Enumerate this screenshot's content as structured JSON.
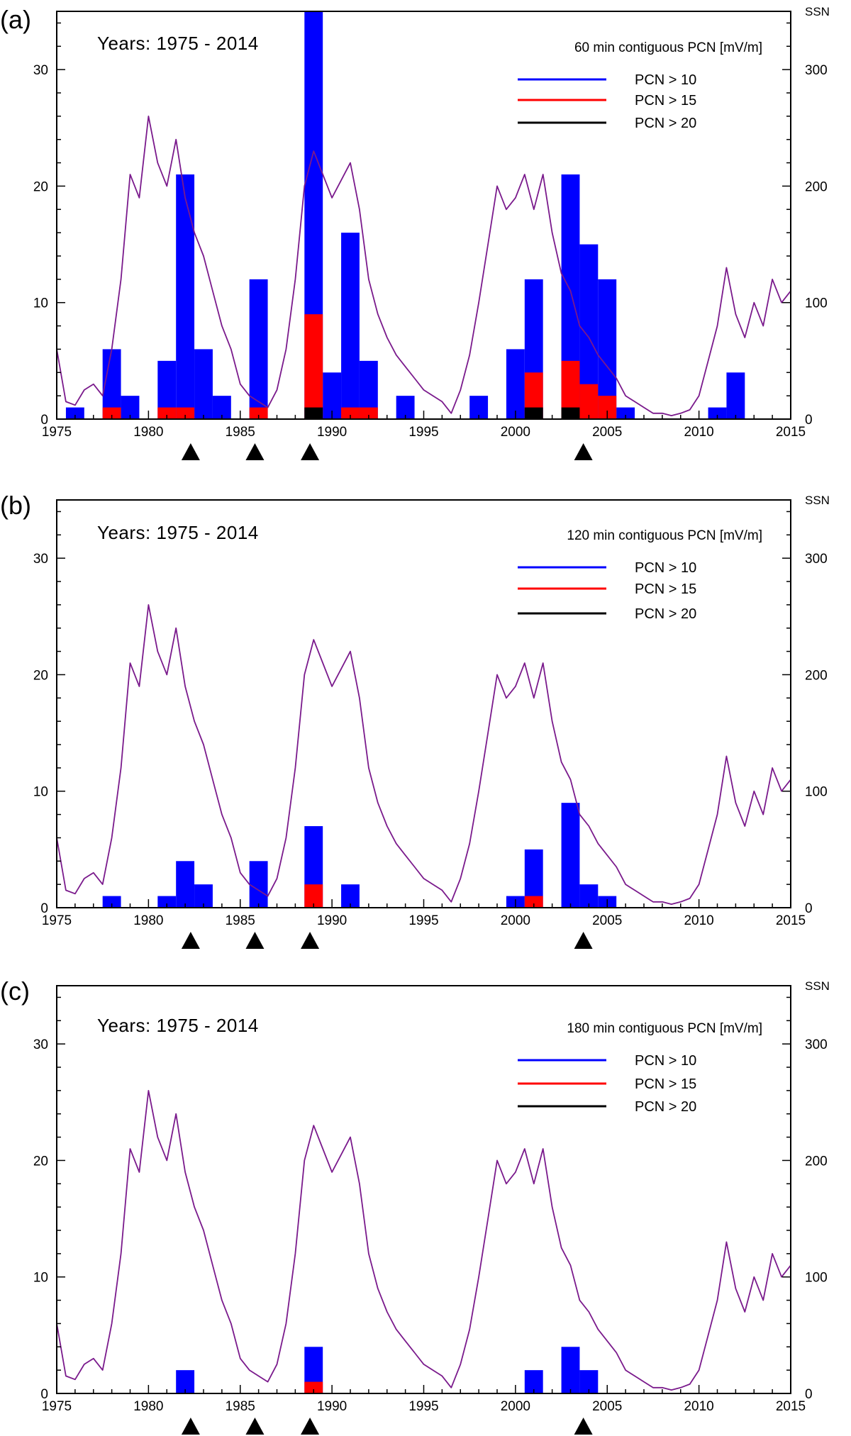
{
  "figure": {
    "ssn_label": "SSN",
    "x_ticks": [
      "1975",
      "1980",
      "1985",
      "1990",
      "1995",
      "2000",
      "2005",
      "2010",
      "2015"
    ],
    "left_ticks": [
      "0",
      "10",
      "20",
      "30"
    ],
    "right_ticks": [
      "0",
      "100",
      "200",
      "300"
    ],
    "colors": {
      "pcn10": "#0000ff",
      "pcn15": "#ff0000",
      "pcn20": "#000000",
      "ssn": "#7a1a8c"
    }
  },
  "chart_data": [
    {
      "type": "bar",
      "panel": "(a)",
      "title": "Years: 1975 - 2014",
      "subtitle": "60 min contiguous PCN [mV/m]",
      "legend": [
        "PCN > 10",
        "PCN > 15",
        "PCN > 20"
      ],
      "legend_placement": "top-right",
      "xlim": [
        1975,
        2015
      ],
      "ylim": [
        0,
        35
      ],
      "y2lim": [
        0,
        350
      ],
      "events": [
        1982.3,
        1985.8,
        1988.8,
        2003.7
      ],
      "series": [
        {
          "name": "PCN > 10",
          "x": [
            1976,
            1978,
            1979,
            1981,
            1982,
            1983,
            1984,
            1986,
            1989,
            1990,
            1991,
            1992,
            1994,
            1998,
            2000,
            2001,
            2003,
            2004,
            2005,
            2006,
            2011,
            2012
          ],
          "values": [
            1,
            6,
            2,
            5,
            21,
            6,
            2,
            12,
            35,
            4,
            16,
            5,
            2,
            2,
            6,
            12,
            21,
            15,
            12,
            1,
            1,
            4
          ]
        },
        {
          "name": "PCN > 15",
          "x": [
            1978,
            1981,
            1982,
            1986,
            1989,
            1991,
            1992,
            2001,
            2003,
            2004,
            2005
          ],
          "values": [
            1,
            1,
            1,
            1,
            9,
            1,
            1,
            4,
            5,
            3,
            2
          ]
        },
        {
          "name": "PCN > 20",
          "x": [
            1989,
            2001,
            2003
          ],
          "values": [
            1,
            1,
            1
          ]
        }
      ]
    },
    {
      "type": "bar",
      "panel": "(b)",
      "title": "Years: 1975 - 2014",
      "subtitle": "120 min contiguous PCN [mV/m]",
      "legend": [
        "PCN > 10",
        "PCN > 15",
        "PCN > 20"
      ],
      "legend_placement": "top-right",
      "xlim": [
        1975,
        2015
      ],
      "ylim": [
        0,
        35
      ],
      "y2lim": [
        0,
        350
      ],
      "events": [
        1982.3,
        1985.8,
        1988.8,
        2003.7
      ],
      "series": [
        {
          "name": "PCN > 10",
          "x": [
            1978,
            1981,
            1982,
            1983,
            1986,
            1989,
            1991,
            2000,
            2001,
            2003,
            2004,
            2005
          ],
          "values": [
            1,
            1,
            4,
            2,
            4,
            7,
            2,
            1,
            5,
            9,
            2,
            1
          ]
        },
        {
          "name": "PCN > 15",
          "x": [
            1989,
            2001
          ],
          "values": [
            2,
            1
          ]
        }
      ]
    },
    {
      "type": "bar",
      "panel": "(c)",
      "title": "Years: 1975 - 2014",
      "subtitle": "180 min contiguous PCN [mV/m]",
      "legend": [
        "PCN > 10",
        "PCN > 15",
        "PCN > 20"
      ],
      "legend_placement": "top-right",
      "xlim": [
        1975,
        2015
      ],
      "ylim": [
        0,
        35
      ],
      "y2lim": [
        0,
        350
      ],
      "events": [
        1982.3,
        1985.8,
        1988.8,
        2003.7
      ],
      "series": [
        {
          "name": "PCN > 10",
          "x": [
            1982,
            1989,
            2001,
            2003,
            2004
          ],
          "values": [
            2,
            4,
            2,
            4,
            2
          ]
        },
        {
          "name": "PCN > 15",
          "x": [
            1989
          ],
          "values": [
            1
          ]
        }
      ]
    }
  ],
  "ssn_series": {
    "name": "SSN",
    "x": [
      1975.0,
      1975.5,
      1976.0,
      1976.5,
      1977.0,
      1977.5,
      1978.0,
      1978.5,
      1979.0,
      1979.5,
      1980.0,
      1980.5,
      1981.0,
      1981.5,
      1982.0,
      1982.5,
      1983.0,
      1983.5,
      1984.0,
      1984.5,
      1985.0,
      1985.5,
      1986.0,
      1986.5,
      1987.0,
      1987.5,
      1988.0,
      1988.5,
      1989.0,
      1989.5,
      1990.0,
      1990.5,
      1991.0,
      1991.5,
      1992.0,
      1992.5,
      1993.0,
      1993.5,
      1994.0,
      1994.5,
      1995.0,
      1995.5,
      1996.0,
      1996.5,
      1997.0,
      1997.5,
      1998.0,
      1998.5,
      1999.0,
      1999.5,
      2000.0,
      2000.5,
      2001.0,
      2001.5,
      2002.0,
      2002.5,
      2003.0,
      2003.5,
      2004.0,
      2004.5,
      2005.0,
      2005.5,
      2006.0,
      2006.5,
      2007.0,
      2007.5,
      2008.0,
      2008.5,
      2009.0,
      2009.5,
      2010.0,
      2010.5,
      2011.0,
      2011.5,
      2012.0,
      2012.5,
      2013.0,
      2013.5,
      2014.0,
      2014.5,
      2015.0
    ],
    "values": [
      60,
      15,
      12,
      25,
      30,
      20,
      60,
      120,
      210,
      190,
      260,
      220,
      200,
      240,
      190,
      160,
      140,
      110,
      80,
      60,
      30,
      20,
      15,
      10,
      25,
      60,
      120,
      200,
      230,
      210,
      190,
      205,
      220,
      180,
      120,
      90,
      70,
      55,
      45,
      35,
      25,
      20,
      15,
      5,
      25,
      55,
      100,
      150,
      200,
      180,
      190,
      210,
      180,
      210,
      160,
      125,
      110,
      80,
      70,
      55,
      45,
      35,
      20,
      15,
      10,
      5,
      5,
      3,
      5,
      8,
      20,
      50,
      80,
      130,
      90,
      70,
      100,
      80,
      120,
      100,
      110
    ]
  }
}
